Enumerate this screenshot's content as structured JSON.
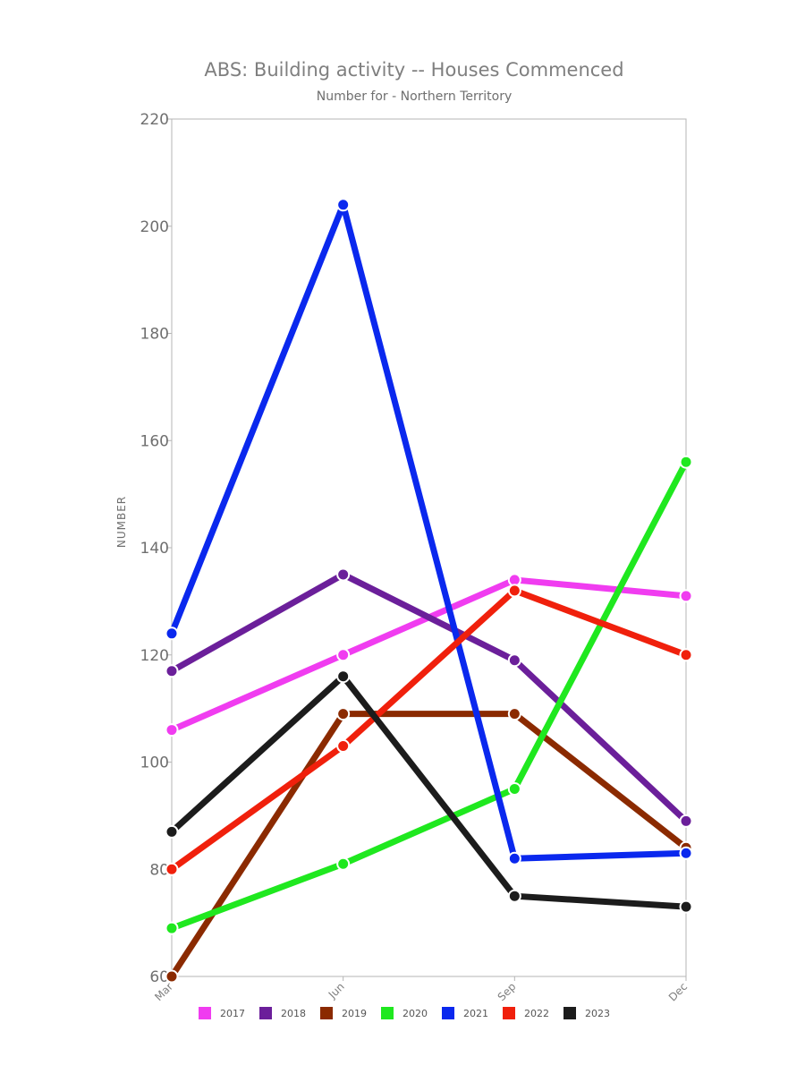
{
  "chart_data": {
    "type": "line",
    "title": "ABS: Building activity -- Houses Commenced",
    "subtitle": "Number for - Northern Territory",
    "ylabel": "NUMBER",
    "xlabel": "",
    "categories": [
      "Mar",
      "Jun",
      "Sep",
      "Dec"
    ],
    "ylim": [
      60,
      220
    ],
    "yticks": [
      60,
      80,
      100,
      120,
      140,
      160,
      180,
      200,
      220
    ],
    "grid": false,
    "legend_position": "bottom",
    "series": [
      {
        "name": "2017",
        "color": "#f03cf0",
        "values": [
          106,
          120,
          134,
          131
        ]
      },
      {
        "name": "2018",
        "color": "#6b1f9a",
        "values": [
          117,
          135,
          119,
          89
        ]
      },
      {
        "name": "2019",
        "color": "#8b2a00",
        "values": [
          60,
          109,
          109,
          84
        ]
      },
      {
        "name": "2020",
        "color": "#1fe81f",
        "values": [
          69,
          81,
          95,
          156
        ]
      },
      {
        "name": "2021",
        "color": "#0a28ee",
        "values": [
          124,
          204,
          82,
          83
        ]
      },
      {
        "name": "2022",
        "color": "#f0200c",
        "values": [
          80,
          103,
          132,
          120
        ]
      },
      {
        "name": "2023",
        "color": "#1c1c1c",
        "values": [
          87,
          116,
          75,
          73
        ]
      }
    ]
  }
}
